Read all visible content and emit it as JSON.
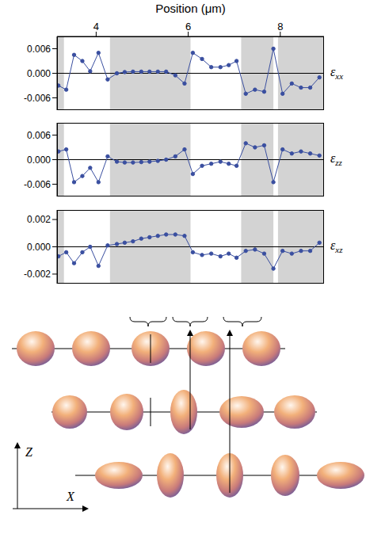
{
  "chart_data": [
    {
      "type": "line",
      "xlabel": "Position (μm)",
      "ylabel": "εxx",
      "xlim": [
        3.15,
        8.95
      ],
      "xticks": [
        4,
        6,
        8
      ],
      "ylim": [
        -0.009,
        0.009
      ],
      "yticks": [
        -0.006,
        {
          "value": 0,
          "label": "0.000"
        },
        0.006
      ],
      "grid": false,
      "color": "#3a4fa0",
      "marker": "circle",
      "shaded_regions": [
        [
          3.15,
          3.3
        ],
        [
          4.3,
          6.05
        ],
        [
          7.15,
          7.85
        ],
        [
          7.95,
          8.95
        ]
      ],
      "x": [
        3.18,
        3.35,
        3.52,
        3.7,
        3.87,
        4.05,
        4.25,
        4.45,
        4.62,
        4.8,
        4.98,
        5.16,
        5.34,
        5.52,
        5.72,
        5.92,
        6.1,
        6.3,
        6.5,
        6.7,
        6.88,
        7.05,
        7.25,
        7.45,
        7.65,
        7.85,
        8.05,
        8.25,
        8.45,
        8.65,
        8.85
      ],
      "values": [
        -0.003,
        -0.004,
        0.0045,
        0.003,
        0.0005,
        0.005,
        -0.0015,
        0.0,
        0.0003,
        0.0004,
        0.0004,
        0.0004,
        0.0004,
        0.0004,
        -0.0005,
        -0.0025,
        0.005,
        0.0035,
        0.0015,
        0.0015,
        0.002,
        0.003,
        -0.005,
        -0.004,
        -0.0045,
        0.006,
        -0.005,
        -0.0025,
        -0.0035,
        -0.0035,
        -0.001
      ]
    },
    {
      "type": "line",
      "ylabel": "εzz",
      "xlim": [
        3.15,
        8.95
      ],
      "ylim": [
        -0.009,
        0.009
      ],
      "yticks": [
        -0.006,
        {
          "value": 0,
          "label": "0.000"
        },
        0.006
      ],
      "grid": false,
      "tick_labels": "y",
      "color": "#3a4fa0",
      "marker": "circle",
      "shaded_regions": [
        [
          3.15,
          3.3
        ],
        [
          4.3,
          6.05
        ],
        [
          7.15,
          7.85
        ],
        [
          7.95,
          8.95
        ]
      ],
      "x": [
        3.18,
        3.35,
        3.52,
        3.7,
        3.87,
        4.05,
        4.25,
        4.45,
        4.62,
        4.8,
        4.98,
        5.16,
        5.34,
        5.52,
        5.72,
        5.92,
        6.1,
        6.3,
        6.5,
        6.7,
        6.88,
        7.05,
        7.25,
        7.45,
        7.65,
        7.85,
        8.05,
        8.25,
        8.45,
        8.65,
        8.85
      ],
      "values": [
        0.002,
        0.0025,
        -0.0055,
        -0.004,
        -0.002,
        -0.0055,
        0.0008,
        -0.0005,
        -0.0007,
        -0.0007,
        -0.0006,
        -0.0005,
        -0.0003,
        0.0,
        0.0008,
        0.0025,
        -0.0035,
        -0.0015,
        -0.001,
        -0.0005,
        -0.001,
        -0.0015,
        0.004,
        0.003,
        0.0035,
        -0.0055,
        0.0025,
        0.0015,
        0.002,
        0.0015,
        0.001
      ]
    },
    {
      "type": "line",
      "ylabel": "εxz",
      "xlim": [
        3.15,
        8.95
      ],
      "ylim": [
        -0.0027,
        0.0027
      ],
      "yticks": [
        -0.002,
        {
          "value": 0,
          "label": "0.000"
        },
        0.002
      ],
      "grid": false,
      "tick_labels": "y",
      "color": "#3a4fa0",
      "marker": "circle",
      "shaded_regions": [
        [
          3.15,
          3.3
        ],
        [
          4.3,
          6.05
        ],
        [
          7.15,
          7.85
        ],
        [
          7.95,
          8.95
        ]
      ],
      "x": [
        3.18,
        3.35,
        3.52,
        3.7,
        3.87,
        4.05,
        4.25,
        4.45,
        4.62,
        4.8,
        4.98,
        5.16,
        5.34,
        5.52,
        5.72,
        5.92,
        6.1,
        6.3,
        6.5,
        6.7,
        6.88,
        7.05,
        7.25,
        7.45,
        7.65,
        7.85,
        8.05,
        8.25,
        8.45,
        8.65,
        8.85
      ],
      "values": [
        -0.0007,
        -0.0004,
        -0.0012,
        -0.0004,
        0.0,
        -0.0014,
        0.0001,
        0.0002,
        0.0003,
        0.0004,
        0.0006,
        0.0007,
        0.0008,
        0.0009,
        0.0009,
        0.0008,
        -0.0004,
        -0.0006,
        -0.0005,
        -0.0007,
        -0.0005,
        -0.0008,
        -0.0003,
        -0.0002,
        -0.0005,
        -0.0016,
        -0.0003,
        -0.0005,
        -0.0003,
        -0.0003,
        0.0003
      ]
    }
  ],
  "diagram": {
    "axis_labels": {
      "z": "Z",
      "x": "X"
    }
  }
}
